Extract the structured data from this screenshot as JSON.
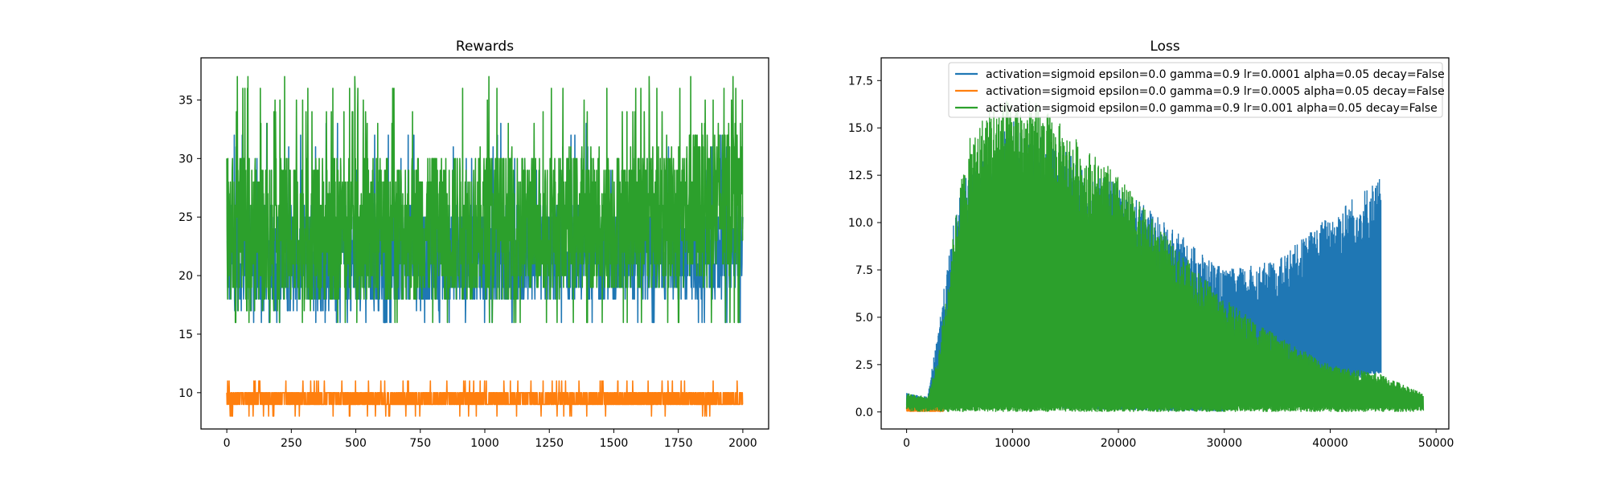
{
  "colors": {
    "blue": "#1f77b4",
    "orange": "#ff7f0e",
    "green": "#2ca02c"
  },
  "chart_data": [
    {
      "type": "line",
      "title": "Rewards",
      "xlabel": "",
      "ylabel": "",
      "xlim": [
        -100,
        2100
      ],
      "ylim": [
        6.9,
        38.6
      ],
      "xticks": [
        0,
        250,
        500,
        750,
        1000,
        1250,
        1500,
        1750,
        2000
      ],
      "xtick_labels": [
        "0",
        "250",
        "500",
        "750",
        "1000",
        "1250",
        "1500",
        "1750",
        "2000"
      ],
      "yticks": [
        10,
        15,
        20,
        25,
        30,
        35
      ],
      "ytick_labels": [
        "10",
        "15",
        "20",
        "25",
        "30",
        "35"
      ],
      "grid": false,
      "legend": false,
      "x_range": [
        0,
        2000
      ],
      "series": [
        {
          "color": "#1f77b4",
          "band_low": [
            [
              0,
              17
            ],
            [
              1900,
              18
            ],
            [
              2000,
              20
            ]
          ],
          "band_high": [
            [
              0,
              26
            ],
            [
              1900,
              26
            ],
            [
              2000,
              26
            ]
          ],
          "extreme_low": 16,
          "extreme_high": 33
        },
        {
          "color": "#ff7f0e",
          "band_low": [
            [
              0,
              9
            ],
            [
              2000,
              9
            ]
          ],
          "band_high": [
            [
              0,
              10
            ],
            [
              2000,
              10
            ]
          ],
          "extreme_low": 8,
          "extreme_high": 11
        },
        {
          "color": "#2ca02c",
          "band_low": [
            [
              0,
              17
            ],
            [
              1900,
              19
            ],
            [
              2000,
              20
            ]
          ],
          "band_high": [
            [
              0,
              30
            ],
            [
              1600,
              31
            ],
            [
              2000,
              34
            ]
          ],
          "extreme_low": 16,
          "extreme_high": 37
        }
      ]
    },
    {
      "type": "line",
      "title": "Loss",
      "xlabel": "",
      "ylabel": "",
      "xlim": [
        -2400,
        51200
      ],
      "ylim": [
        -0.9,
        18.7
      ],
      "xticks": [
        0,
        10000,
        20000,
        30000,
        40000,
        50000
      ],
      "xtick_labels": [
        "0",
        "10000",
        "20000",
        "30000",
        "40000",
        "50000"
      ],
      "yticks": [
        0.0,
        2.5,
        5.0,
        7.5,
        10.0,
        12.5,
        15.0,
        17.5
      ],
      "ytick_labels": [
        "0.0",
        "2.5",
        "5.0",
        "7.5",
        "10.0",
        "12.5",
        "15.0",
        "17.5"
      ],
      "grid": false,
      "legend": "top-right",
      "series": [
        {
          "name": "activation=sigmoid epsilon=0.0 gamma=0.9 lr=0.0001 alpha=0.05 decay=False",
          "color": "#1f77b4",
          "x_range": [
            0,
            44800
          ],
          "envelope": [
            [
              0,
              1.0
            ],
            [
              2000,
              0.8
            ],
            [
              5000,
              12.0
            ],
            [
              10000,
              15.5
            ],
            [
              20000,
              12.0
            ],
            [
              30000,
              7.5
            ],
            [
              35000,
              8.0
            ],
            [
              40000,
              10.5
            ],
            [
              44800,
              12.5
            ]
          ],
          "floor": [
            [
              0,
              0.3
            ],
            [
              30000,
              0
            ],
            [
              35000,
              1.0
            ],
            [
              44800,
              2.0
            ]
          ]
        },
        {
          "name": "activation=sigmoid epsilon=0.0 gamma=0.9 lr=0.0005 alpha=0.05 decay=False",
          "color": "#ff7f0e",
          "x_range": [
            0,
            3500
          ],
          "envelope": [
            [
              0,
              0.15
            ],
            [
              3500,
              0.05
            ]
          ],
          "floor": [
            [
              0,
              0
            ],
            [
              3500,
              0
            ]
          ]
        },
        {
          "name": "activation=sigmoid epsilon=0.0 gamma=0.9 lr=0.001 alpha=0.05 decay=False",
          "color": "#2ca02c",
          "x_range": [
            0,
            48800
          ],
          "envelope": [
            [
              0,
              1.0
            ],
            [
              2000,
              0.8
            ],
            [
              3000,
              3.0
            ],
            [
              5000,
              12.0
            ],
            [
              6000,
              14.5
            ],
            [
              8000,
              16.5
            ],
            [
              12000,
              16.5
            ],
            [
              15000,
              15.0
            ],
            [
              20000,
              12.5
            ],
            [
              25000,
              9.0
            ],
            [
              30000,
              6.0
            ],
            [
              35000,
              4.0
            ],
            [
              40000,
              2.5
            ],
            [
              44800,
              2.0
            ],
            [
              48800,
              1.0
            ]
          ],
          "floor": [
            [
              0,
              0
            ],
            [
              48800,
              0
            ]
          ]
        }
      ]
    }
  ]
}
